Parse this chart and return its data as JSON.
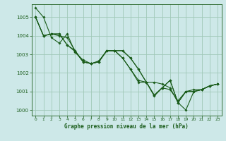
{
  "xlabel": "Graphe pression niveau de la mer (hPa)",
  "ylim": [
    999.7,
    1005.7
  ],
  "xlim": [
    -0.5,
    23.5
  ],
  "xticks": [
    0,
    1,
    2,
    3,
    4,
    5,
    6,
    7,
    8,
    9,
    10,
    11,
    12,
    13,
    14,
    15,
    16,
    17,
    18,
    19,
    20,
    21,
    22,
    23
  ],
  "yticks": [
    1000,
    1001,
    1002,
    1003,
    1004,
    1005
  ],
  "bg_color": "#cde8e8",
  "grid_color": "#a0c8b8",
  "line_color": "#1a5c1a",
  "series": [
    [
      1005.5,
      1005.0,
      1003.9,
      1003.6,
      1004.1,
      1003.1,
      1002.7,
      1002.5,
      1002.6,
      1003.2,
      1003.2,
      1002.8,
      1002.2,
      1001.6,
      1001.5,
      1000.8,
      1001.2,
      1001.1,
      1000.5,
      1001.0,
      1001.1,
      1001.1,
      1001.3,
      1001.4
    ],
    [
      1005.0,
      1004.0,
      1004.1,
      1004.0,
      1003.9,
      1003.2,
      1002.6,
      1002.5,
      1002.6,
      1003.2,
      1003.2,
      1002.8,
      1002.2,
      1001.5,
      1001.5,
      1000.8,
      1001.2,
      1001.6,
      1000.4,
      1001.0,
      1001.0,
      1001.1,
      1001.3,
      1001.4
    ],
    [
      1005.0,
      1004.0,
      1004.1,
      1004.1,
      1003.5,
      1003.2,
      1002.6,
      1002.5,
      1002.6,
      1003.2,
      1003.2,
      1003.2,
      1002.8,
      1002.2,
      1001.5,
      1001.5,
      1001.4,
      1001.2,
      1000.4,
      1000.0,
      1001.0,
      1001.1,
      1001.3,
      1001.4
    ],
    [
      1005.0,
      1004.0,
      1004.1,
      1004.1,
      1003.5,
      1003.15,
      1002.6,
      1002.5,
      1002.65,
      1003.2,
      1003.2,
      1003.2,
      1002.8,
      1002.2,
      1001.5,
      1000.75,
      1001.2,
      1001.6,
      1000.4,
      1001.0,
      1001.0,
      1001.1,
      1001.3,
      1001.4
    ]
  ]
}
